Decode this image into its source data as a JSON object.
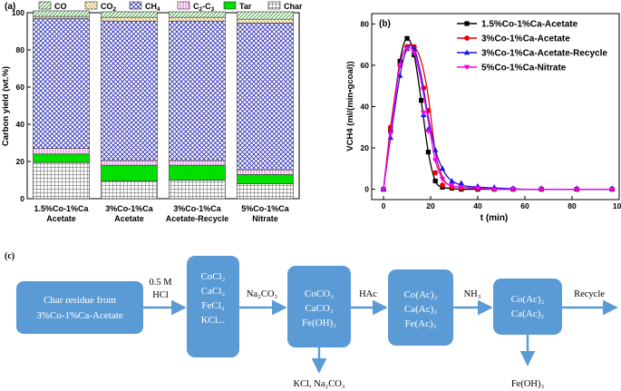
{
  "chart_data": [
    {
      "panel": "(a)",
      "type": "bar",
      "stacked": true,
      "categories": [
        [
          "1.5%Co-1%Ca",
          "Acetate"
        ],
        [
          "3%Co-1%Ca",
          "Acetate"
        ],
        [
          "3%Co-1%Ca",
          "Acetate-Recycle"
        ],
        [
          "5%Co-1%Ca",
          "Nitrate"
        ]
      ],
      "ylabel": "Carbon yield (wt.%)",
      "ylim": [
        0,
        100
      ],
      "yticks": [
        0,
        20,
        40,
        60,
        80,
        100
      ],
      "legend": {
        "placement": "top",
        "labels": [
          "CO",
          "CO2",
          "CH4",
          "C2-C3",
          "Tar",
          "Char"
        ]
      },
      "series": [
        {
          "name": "Char",
          "color": "#ffffff",
          "pattern": "grid",
          "values": [
            19.5,
            9.5,
            10,
            8
          ]
        },
        {
          "name": "Tar",
          "color": "#00e000",
          "pattern": "solid",
          "values": [
            4.5,
            8.5,
            8,
            5
          ]
        },
        {
          "name": "C2-C3",
          "color": "#cc33cc",
          "pattern": "vlines",
          "values": [
            3,
            2.5,
            2.5,
            2.5
          ]
        },
        {
          "name": "CH4",
          "color": "#3030c0",
          "pattern": "crosshatch",
          "values": [
            70,
            75,
            75,
            79
          ]
        },
        {
          "name": "CO2",
          "color": "#c89000",
          "pattern": "backslash",
          "values": [
            1,
            2,
            2,
            2
          ]
        },
        {
          "name": "CO",
          "color": "#209020",
          "pattern": "slash",
          "values": [
            3,
            3,
            3,
            4
          ]
        }
      ]
    },
    {
      "panel": "(b)",
      "type": "line",
      "xlabel": "t (min)",
      "ylabel": "VCH4 (ml/(min•gcoal))",
      "xlim": [
        -5,
        100
      ],
      "ylim": [
        -5,
        85
      ],
      "xticks": [
        0,
        20,
        40,
        60,
        80,
        100
      ],
      "yticks": [
        0,
        20,
        40,
        60,
        80
      ],
      "legend": {
        "placement": "top-right"
      },
      "series": [
        {
          "name": "1.5%Co-1%Ca-Acetate",
          "color": "#000000",
          "marker": "square",
          "x": [
            0,
            3,
            7,
            10,
            13,
            16,
            19,
            22,
            25,
            28,
            33,
            40,
            50,
            60,
            70,
            80,
            90,
            98
          ],
          "y": [
            0,
            28,
            62,
            73,
            65,
            43,
            18,
            4,
            1,
            0.5,
            0,
            0,
            0,
            0,
            0,
            0,
            0,
            0
          ],
          "mx": [
            0,
            3,
            7,
            10,
            13,
            16,
            19,
            22,
            25,
            29,
            33,
            40,
            47,
            55,
            67,
            82,
            97
          ],
          "my": [
            0,
            28,
            62,
            73,
            65,
            43,
            18,
            4,
            1,
            0.5,
            0,
            0,
            0,
            0,
            0,
            0,
            0
          ]
        },
        {
          "name": "3%Co-1%Ca-Acetate",
          "color": "#ee0000",
          "marker": "circle",
          "x": [
            0,
            3,
            7,
            10,
            13,
            16,
            19,
            22,
            25,
            28,
            33,
            40,
            50,
            60,
            70,
            80,
            90,
            98
          ],
          "y": [
            0,
            30,
            60,
            69,
            69,
            62,
            45,
            18,
            6,
            2,
            1,
            0.5,
            0,
            0,
            0,
            0,
            0,
            0
          ],
          "mx": [
            0,
            3,
            7,
            10,
            13,
            17,
            19,
            22,
            25,
            29,
            33,
            40,
            47,
            55,
            67,
            82,
            97
          ],
          "my": [
            0,
            30,
            60,
            69,
            69,
            49,
            38,
            8,
            2,
            1,
            0.5,
            0.5,
            0,
            0,
            0,
            0,
            0
          ]
        },
        {
          "name": "3%Co-1%Ca-Acetate-Recycle",
          "color": "#1515e0",
          "marker": "triangle-up",
          "x": [
            0,
            3,
            7,
            10,
            13,
            16,
            19,
            22,
            25,
            28,
            33,
            40,
            50,
            60,
            70,
            80,
            90,
            98
          ],
          "y": [
            0,
            25,
            55,
            68,
            68,
            55,
            35,
            19,
            10,
            5,
            2,
            1,
            0.5,
            0,
            0,
            0,
            0,
            0
          ],
          "mx": [
            0,
            3,
            7,
            10,
            13,
            17,
            19,
            22,
            25,
            29,
            33,
            40,
            47,
            55,
            67,
            82,
            97
          ],
          "my": [
            0,
            25,
            55,
            68,
            68,
            36,
            29,
            19,
            10,
            4,
            3,
            1.5,
            1,
            0.5,
            0.5,
            0.5,
            0.5
          ]
        },
        {
          "name": "5%Co-1%Ca-Nitrate",
          "color": "#ee00ee",
          "marker": "triangle-down",
          "x": [
            0,
            3,
            7,
            10,
            13,
            16,
            19,
            22,
            25,
            28,
            33,
            40,
            50,
            60,
            70,
            80,
            90,
            98
          ],
          "y": [
            0,
            27,
            60,
            68,
            66,
            52,
            33,
            14,
            5,
            2,
            1,
            0.5,
            0,
            0,
            0,
            0,
            0,
            0
          ],
          "mx": [
            0,
            3,
            7,
            10,
            13,
            17,
            19,
            22,
            25,
            29,
            33,
            40,
            47,
            55,
            67,
            82,
            97
          ],
          "my": [
            0,
            27,
            60,
            68,
            66,
            37,
            28,
            14,
            5,
            2,
            1,
            0.5,
            0,
            0,
            0,
            0,
            0
          ]
        }
      ]
    }
  ],
  "panel_c": {
    "label": "(c)",
    "box1": [
      "Char residue from",
      "3%Co-1%Ca-Acetate"
    ],
    "arrow1": [
      "0.5 M",
      "HCl"
    ],
    "box2": [
      "CoCl₂",
      "CaCl₂",
      "FeCl₃",
      "KCl..."
    ],
    "arrow2": "Na₂CO₃",
    "box3": [
      "CoCO₃",
      "CaCO₃",
      "Fe(OH)₃"
    ],
    "precip3": "KCl, Na₂CO₃",
    "arrow3": "HAc",
    "box4": [
      "Co(Ac)₂",
      "Ca(Ac)₂",
      "Fe(Ac)₃"
    ],
    "arrow4": "NH₃",
    "box5": [
      "Co(Ac)₂",
      "Ca(Ac)₂"
    ],
    "precip5": "Fe(OH)₃",
    "arrow5": "Recycle"
  }
}
